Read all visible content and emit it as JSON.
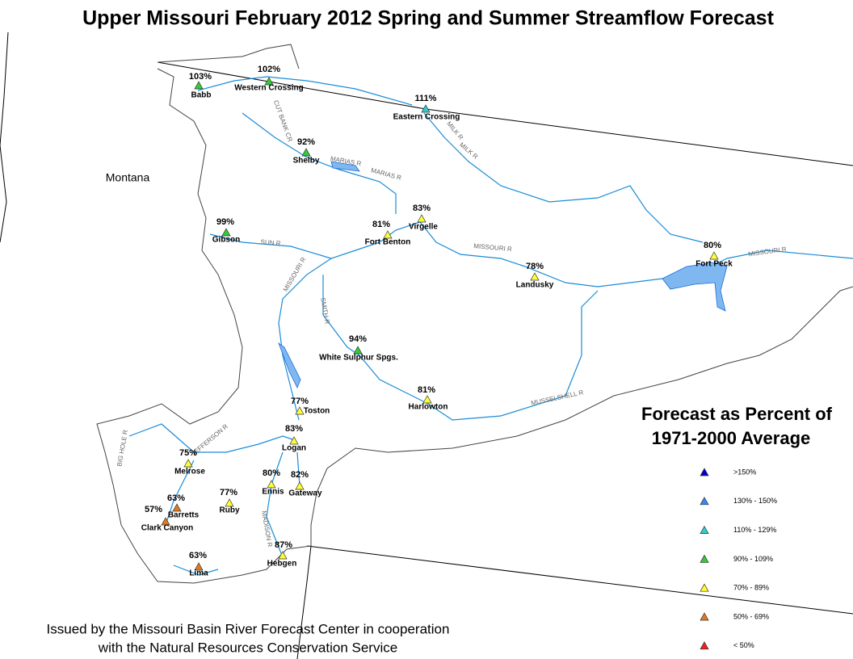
{
  "header": {
    "title": "Upper Missouri February 2012 Spring and Summer Streamflow Forecast"
  },
  "map": {
    "state_label": "Montana",
    "rivers": [
      "CUT BANK CR",
      "MARIAS R",
      "MARIAS R",
      "MILK R",
      "MILK R",
      "SUN R",
      "MISSOURI R",
      "MISSOURI R",
      "MISSOURI R",
      "SMITH R",
      "MUSSELSHELL R",
      "JEFFERSON R",
      "BIG HOLE R",
      "MADISON R"
    ],
    "stations": [
      {
        "name": "Babb",
        "percent": "103%",
        "color": "#33cc33"
      },
      {
        "name": "Western Crossing",
        "percent": "102%",
        "color": "#33cc33"
      },
      {
        "name": "Eastern Crossing",
        "percent": "111%",
        "color": "#33cccc"
      },
      {
        "name": "Shelby",
        "percent": "92%",
        "color": "#33cc33"
      },
      {
        "name": "Gibson",
        "percent": "99%",
        "color": "#33cc33"
      },
      {
        "name": "Fort Benton",
        "percent": "81%",
        "color": "#ffff33"
      },
      {
        "name": "Virgelle",
        "percent": "83%",
        "color": "#ffff33"
      },
      {
        "name": "Fort Peck",
        "percent": "80%",
        "color": "#ffff33"
      },
      {
        "name": "Landusky",
        "percent": "78%",
        "color": "#ffff33"
      },
      {
        "name": "White Sulphur Spgs.",
        "percent": "94%",
        "color": "#33cc33"
      },
      {
        "name": "Harlowton",
        "percent": "81%",
        "color": "#ffff33"
      },
      {
        "name": "Toston",
        "percent": "77%",
        "color": "#ffff33"
      },
      {
        "name": "Logan",
        "percent": "83%",
        "color": "#ffff33"
      },
      {
        "name": "Melrose",
        "percent": "75%",
        "color": "#ffff33"
      },
      {
        "name": "Ennis",
        "percent": "80%",
        "color": "#ffff33"
      },
      {
        "name": "Gateway",
        "percent": "82%",
        "color": "#ffff33"
      },
      {
        "name": "Ruby",
        "percent": "77%",
        "color": "#ffff33"
      },
      {
        "name": "Barretts",
        "percent": "63%",
        "color": "#e07a20"
      },
      {
        "name": "Clark Canyon",
        "percent": "57%",
        "color": "#e07a20"
      },
      {
        "name": "Lima",
        "percent": "63%",
        "color": "#e07a20"
      },
      {
        "name": "Hebgen",
        "percent": "87%",
        "color": "#ffff33"
      }
    ]
  },
  "legend": {
    "title_lines": [
      "Forecast as Percent of",
      "1971-2000 Average"
    ],
    "items": [
      {
        "label": ">150%",
        "color": "#0000cc"
      },
      {
        "label": "130% - 150%",
        "color": "#3388ff"
      },
      {
        "label": "110% - 129%",
        "color": "#33cccc"
      },
      {
        "label": "90% - 109%",
        "color": "#33cc33"
      },
      {
        "label": "70% - 89%",
        "color": "#ffff33"
      },
      {
        "label": "50% - 69%",
        "color": "#e07a20"
      },
      {
        "label": "< 50%",
        "color": "#ee2222"
      }
    ]
  },
  "footer": {
    "lines": [
      "Issued by the Missouri Basin River Forecast Center in cooperation",
      "with the Natural Resources Conservation Service"
    ]
  }
}
